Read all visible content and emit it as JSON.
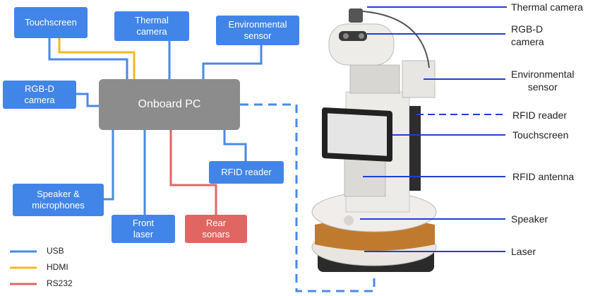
{
  "diagram": {
    "pc": "Onboard PC",
    "boxes": {
      "touchscreen": "Touchscreen",
      "thermal": "Thermal\ncamera",
      "environmental": "Environmental\nsensor",
      "rgbd": "RGB-D\ncamera",
      "rfid": "RFID reader",
      "speaker": "Speaker &\nmicrophones",
      "front_laser": "Front\nlaser",
      "rear_sonars": "Rear\nsonars"
    },
    "legend": [
      {
        "label": "USB",
        "color": "#4a89e6"
      },
      {
        "label": "HDMI",
        "color": "#f2b824"
      },
      {
        "label": "RS232",
        "color": "#e06662"
      }
    ],
    "callouts": {
      "thermal": "Thermal camera",
      "rgbd": "RGB-D\ncamera",
      "environmental": "Environmental\nsensor",
      "rfid_reader": "RFID reader",
      "touchscreen": "Touchscreen",
      "rfid_antenna": "RFID antenna",
      "speaker": "Speaker",
      "laser": "Laser"
    },
    "colors": {
      "box_blue": "#4285e8",
      "box_gray": "#8c8c8c",
      "box_red": "#e06662",
      "callout_line": "#1f3fd6"
    }
  }
}
